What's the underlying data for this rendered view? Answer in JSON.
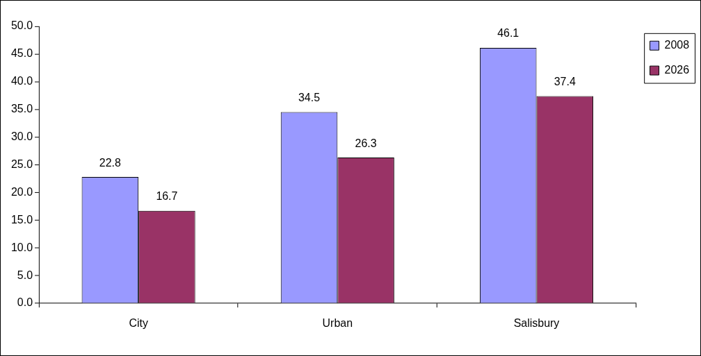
{
  "chart_data": {
    "type": "bar",
    "categories": [
      "City",
      "Urban",
      "Salisbury"
    ],
    "series": [
      {
        "name": "2008",
        "color": "#9999ff",
        "values": [
          22.8,
          34.5,
          46.1
        ]
      },
      {
        "name": "2026",
        "color": "#993366",
        "values": [
          16.7,
          26.3,
          37.4
        ]
      }
    ],
    "ylim": [
      0,
      50
    ],
    "yticks": [
      {
        "value": 0,
        "label": "0.0"
      },
      {
        "value": 5,
        "label": "5.0"
      },
      {
        "value": 10,
        "label": "10.0"
      },
      {
        "value": 15,
        "label": "15.0"
      },
      {
        "value": 20,
        "label": "20.0"
      },
      {
        "value": 25,
        "label": "25.0"
      },
      {
        "value": 30,
        "label": "30.0"
      },
      {
        "value": 35,
        "label": "35.0"
      },
      {
        "value": 40,
        "label": "40.0"
      },
      {
        "value": 45,
        "label": "45.0"
      },
      {
        "value": 50,
        "label": "50.0"
      }
    ],
    "grid": false,
    "legend": "top right",
    "data_labels": true
  }
}
